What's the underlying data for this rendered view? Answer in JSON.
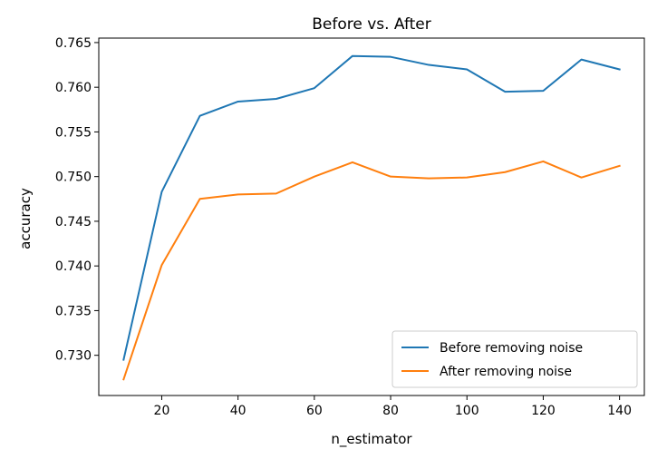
{
  "chart_data": {
    "type": "line",
    "title": "Before vs. After",
    "xlabel": "n_estimator",
    "ylabel": "accuracy",
    "x": [
      10,
      20,
      30,
      40,
      50,
      60,
      70,
      80,
      90,
      100,
      110,
      120,
      130,
      140
    ],
    "xlim": [
      3.5,
      146.5
    ],
    "ylim": [
      0.7255,
      0.7655
    ],
    "xticks": [
      20,
      40,
      60,
      80,
      100,
      120,
      140
    ],
    "yticks": [
      0.73,
      0.735,
      0.74,
      0.745,
      0.75,
      0.755,
      0.76,
      0.765
    ],
    "xtick_labels": [
      "20",
      "40",
      "60",
      "80",
      "100",
      "120",
      "140"
    ],
    "ytick_labels": [
      "0.730",
      "0.735",
      "0.740",
      "0.745",
      "0.750",
      "0.755",
      "0.760",
      "0.765"
    ],
    "grid": false,
    "legend_position": "lower-right",
    "series": [
      {
        "name": "Before removing noise",
        "color": "#1f77b4",
        "values": [
          0.7295,
          0.7483,
          0.7568,
          0.7584,
          0.7587,
          0.7599,
          0.7635,
          0.7634,
          0.7625,
          0.762,
          0.7595,
          0.7596,
          0.7631,
          0.762
        ]
      },
      {
        "name": "After removing noise",
        "color": "#ff7f0e",
        "values": [
          0.7273,
          0.7401,
          0.7475,
          0.748,
          0.7481,
          0.75,
          0.7516,
          0.75,
          0.7498,
          0.7499,
          0.7505,
          0.7517,
          0.7499,
          0.7512
        ]
      }
    ]
  }
}
